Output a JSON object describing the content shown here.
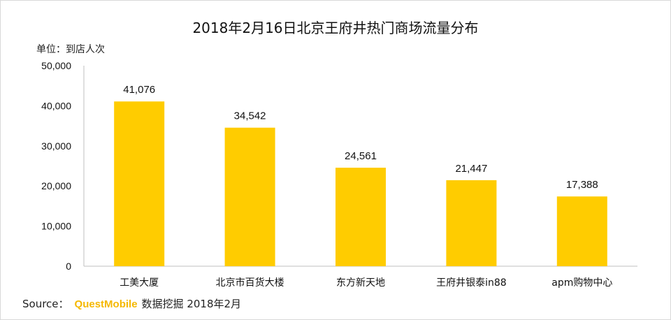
{
  "chart_data": {
    "type": "bar",
    "title": "2018年2月16日北京王府井热门商场流量分布",
    "unit_label": "单位：到店人次",
    "categories": [
      "工美大厦",
      "北京市百货大楼",
      "东方新天地",
      "王府井银泰in88",
      "apm购物中心"
    ],
    "values": [
      41076,
      34542,
      24561,
      21447,
      17388
    ],
    "value_labels": [
      "41,076",
      "34,542",
      "24,561",
      "21,447",
      "17,388"
    ],
    "ylim": [
      0,
      50000
    ],
    "yticks": [
      "0",
      "10,000",
      "20,000",
      "30,000",
      "40,000",
      "50,000"
    ],
    "ytick_values": [
      0,
      10000,
      20000,
      30000,
      40000,
      50000
    ],
    "grid": false,
    "bar_color": "#FFCC00"
  },
  "source": {
    "prefix": "Source：",
    "brand": "QuestMobile",
    "text": "数据挖掘 2018年2月"
  },
  "colors": {
    "brand": "#F5B800",
    "axis": "#BFBFBF"
  }
}
